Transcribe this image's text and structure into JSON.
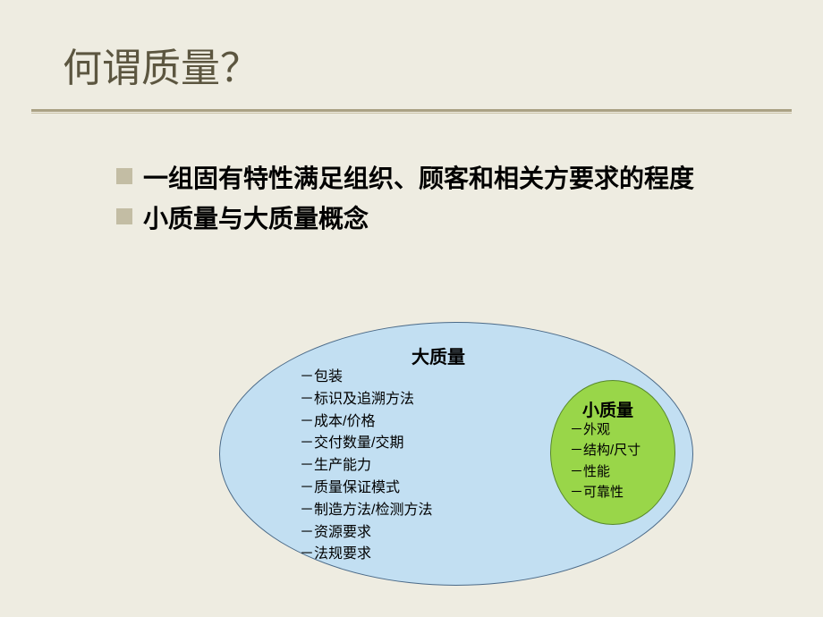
{
  "title": "何谓质量？",
  "bullets": {
    "b1": "一组固有特性满足组织、顾客和相关方要求的程度",
    "b2": "小质量与大质量概念"
  },
  "diagram": {
    "big": {
      "label": "大质量",
      "items": [
        "－包装",
        "－标识及追溯方法",
        "－成本/价格",
        "－交付数量/交期",
        "－生产能力",
        "－质量保证模式",
        "－制造方法/检测方法",
        "－资源要求",
        "－法规要求"
      ],
      "fill": "#c2dff2",
      "stroke": "#4b6a88",
      "ellipse_w": 530,
      "ellipse_h": 295
    },
    "small": {
      "label": "小质量",
      "items": [
        "－外观",
        "－结构/尺寸",
        "－性能",
        "－可靠性"
      ],
      "fill": "#99d649",
      "stroke": "#57882a",
      "ellipse_w": 140,
      "ellipse_h": 162
    }
  },
  "style": {
    "background": "#eeece1",
    "title_color": "#5c5640",
    "title_fontsize": 44,
    "underline_color": "#aaa184",
    "bullet_square_color": "#c3bda4",
    "bullet_fontsize": 28,
    "big_label_fontsize": 20,
    "big_list_fontsize": 16,
    "small_label_fontsize": 19,
    "small_list_fontsize": 15
  }
}
